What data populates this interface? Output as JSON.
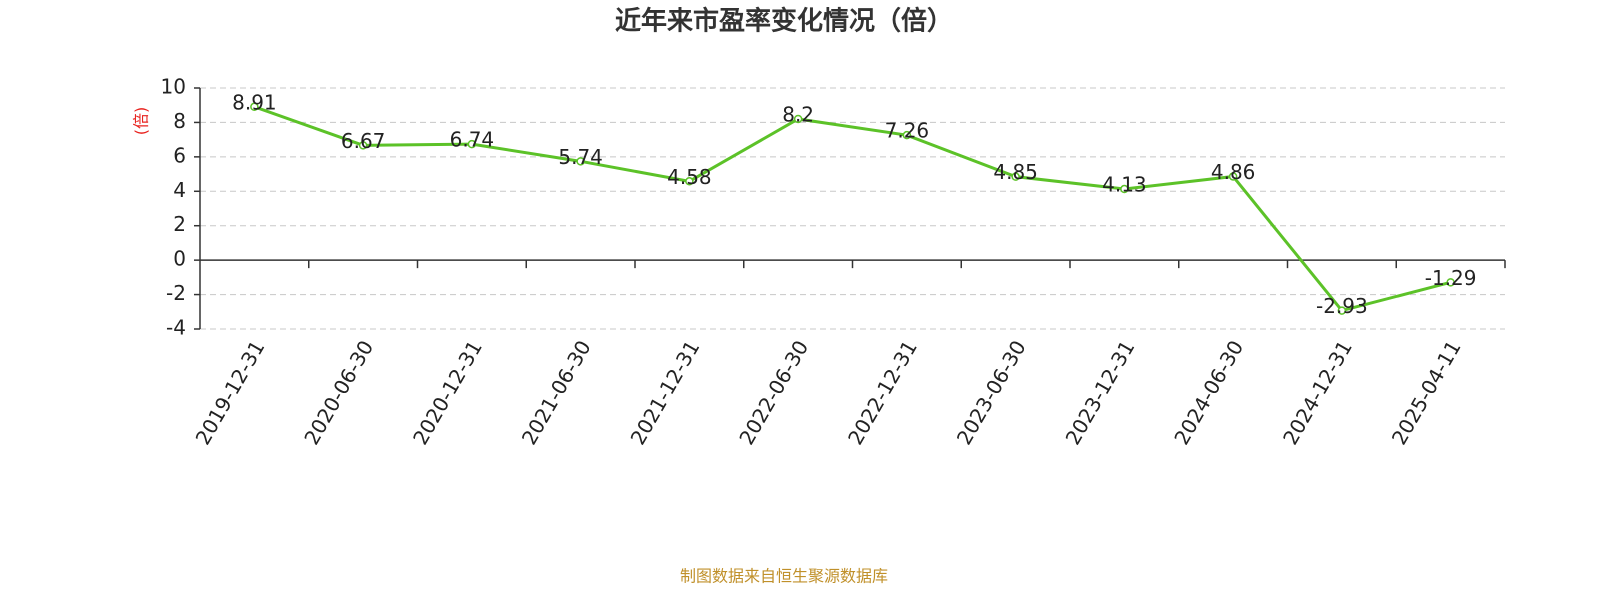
{
  "chart_data": {
    "type": "line",
    "title": "近年来市盈率变化情况（倍）",
    "y_label": "(倍)",
    "source": "制图数据来自恒生聚源数据库",
    "categories": [
      "2019-12-31",
      "2020-06-30",
      "2020-12-31",
      "2021-06-30",
      "2021-12-31",
      "2022-06-30",
      "2022-12-31",
      "2023-06-30",
      "2023-12-31",
      "2024-06-30",
      "2024-12-31",
      "2025-04-11"
    ],
    "values": [
      8.91,
      6.67,
      6.74,
      5.74,
      4.58,
      8.2,
      7.26,
      4.85,
      4.13,
      4.86,
      -2.93,
      -1.29
    ],
    "color": "#5cc228",
    "ylim": [
      -4,
      10
    ],
    "yticks": [
      -4,
      -2,
      0,
      2,
      4,
      6,
      8,
      10
    ],
    "grid": true
  }
}
